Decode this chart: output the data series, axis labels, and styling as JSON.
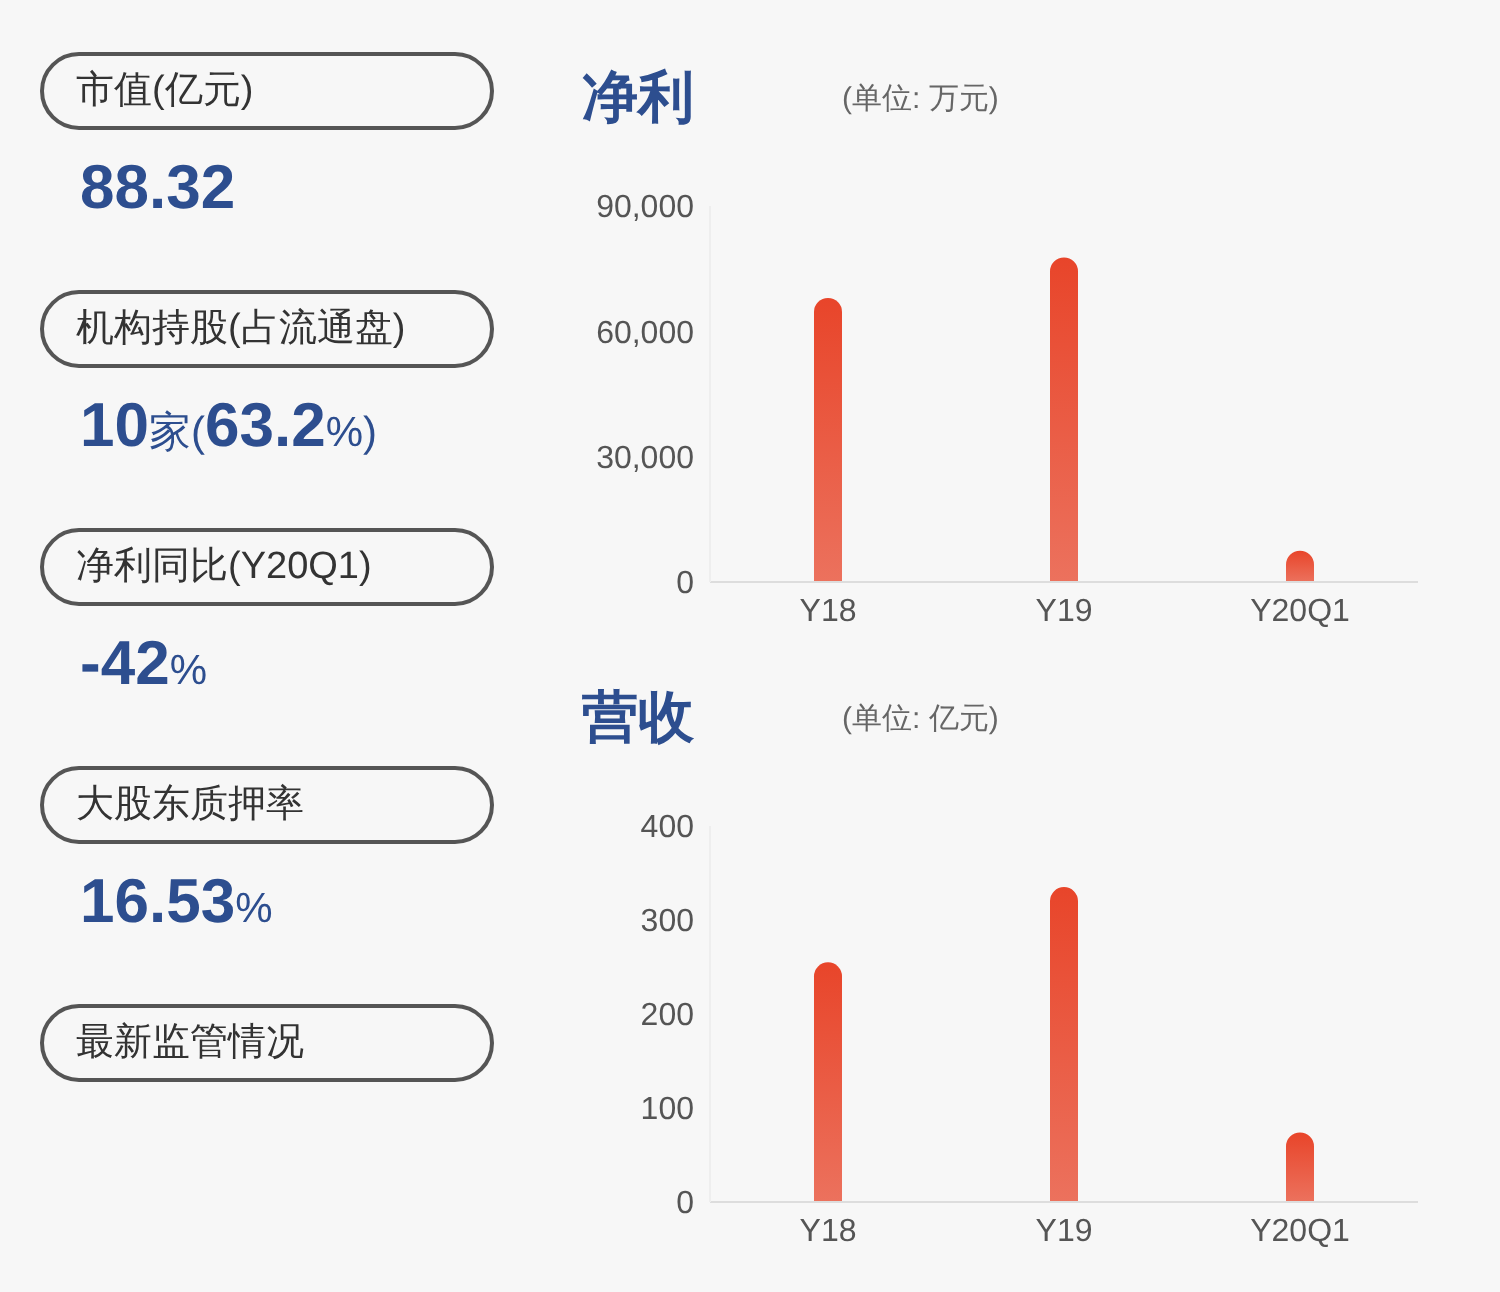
{
  "chart_data": [
    {
      "type": "other",
      "categories": [
        "市值(亿元)",
        "机构持股(占流通盘)",
        "净利同比(Y20Q1)",
        "大股东质押率",
        "最新监管情况"
      ],
      "value_labels": [
        "88.32",
        "10家(63.2%)",
        "-42%",
        "16.53%",
        null
      ]
    },
    {
      "type": "bar",
      "title": "净利",
      "subtitle": "(单位: 万元)",
      "categories": [
        "Y18",
        "Y19",
        "Y20Q1"
      ],
      "values": [
        68000,
        77700,
        7500
      ],
      "color": "#e8452a",
      "ylim": [
        0,
        90000
      ],
      "yticks": [
        {
          "value": 0,
          "label": "0"
        },
        {
          "value": 30000,
          "label": "30,000"
        },
        {
          "value": 60000,
          "label": "60,000"
        },
        {
          "value": 90000,
          "label": "90,000"
        }
      ],
      "grid": false,
      "legend": false
    },
    {
      "type": "bar",
      "title": "营收",
      "subtitle": "(单位: 亿元)",
      "categories": [
        "Y18",
        "Y19",
        "Y20Q1"
      ],
      "values": [
        255,
        335,
        74
      ],
      "color": "#e8452a",
      "ylim": [
        0,
        400
      ],
      "yticks": [
        0,
        100,
        200,
        300,
        400
      ],
      "grid": false,
      "legend": false
    }
  ]
}
